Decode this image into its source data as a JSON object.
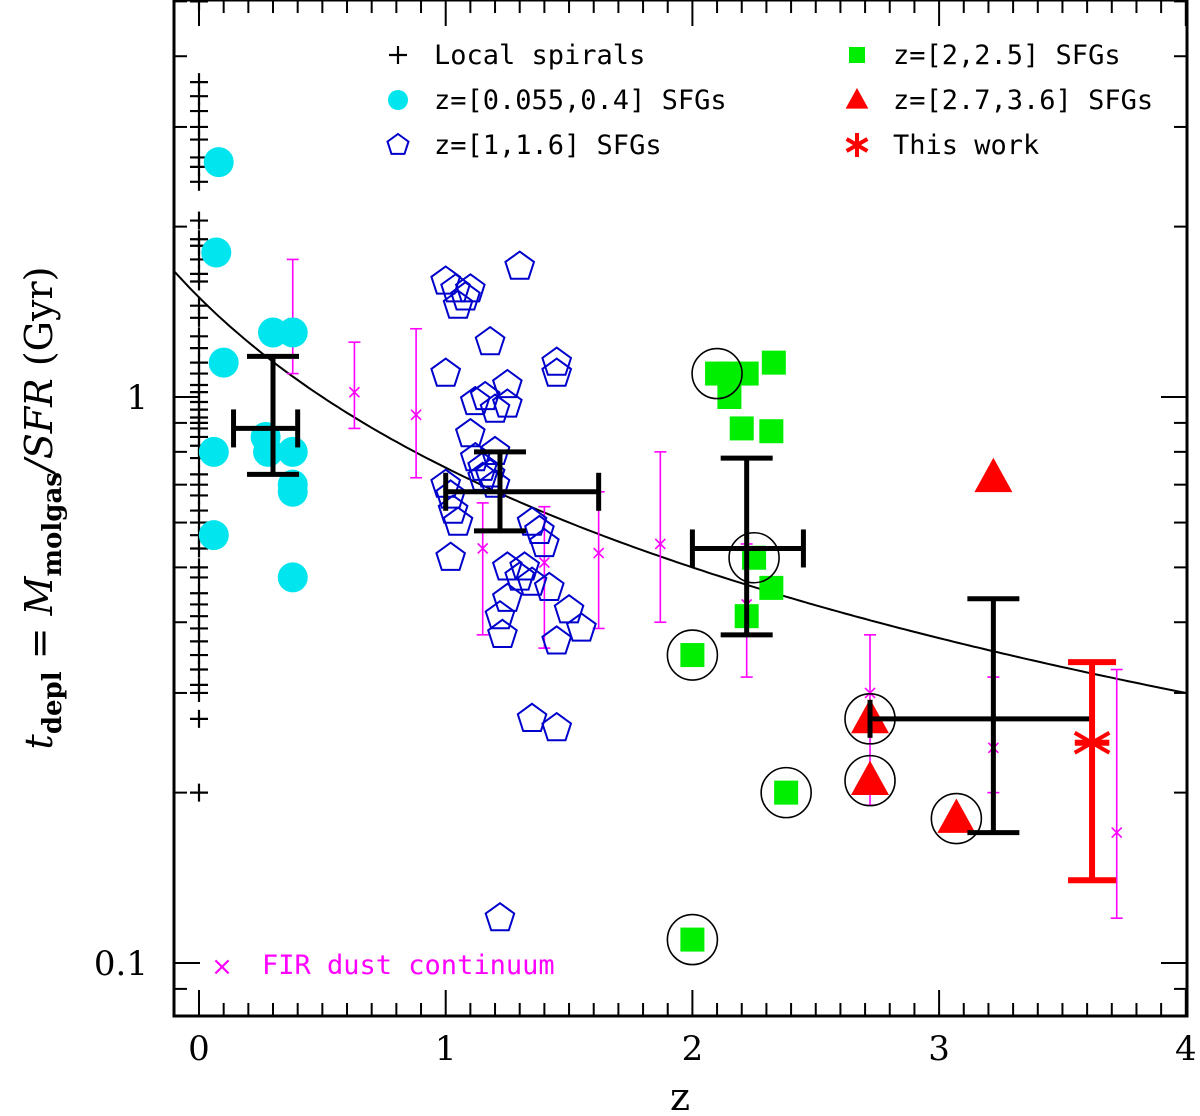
{
  "chart_data": {
    "type": "scatter",
    "xlabel": "z",
    "ylabel_parts": {
      "t": "t",
      "t_sub": "depl",
      "eq": " = ",
      "m": "M",
      "m_sub": "molgas",
      "rest": "/SFR",
      "unit": " (Gyr)"
    },
    "xlim": [
      -0.1,
      4.0
    ],
    "ylim": [
      0.08,
      7.0
    ],
    "y_scale": "log",
    "x_ticks": [
      0,
      1,
      2,
      3,
      4
    ],
    "x_tick_labels": [
      "0",
      "1",
      "2",
      "3",
      "4"
    ],
    "y_tick_labels": [
      {
        "v": 1,
        "label": "1"
      },
      {
        "v": 0.1,
        "label": "0.1"
      }
    ],
    "grid": false,
    "legend_position": "top",
    "colors": {
      "local": "#000000",
      "cyan": "#00e5ee",
      "blue": "#0000cc",
      "green": "#00ee00",
      "red": "#ff0000",
      "magenta": "#ff00ff",
      "black": "#000000"
    },
    "legend": [
      {
        "label": "Local spirals",
        "marker": "plus"
      },
      {
        "label": "z=[0.055,0.4] SFGs",
        "marker": "circle"
      },
      {
        "label": "z=[1,1.6] SFGs",
        "marker": "pentagon"
      },
      {
        "label": "z=[2,2.5] SFGs",
        "marker": "square"
      },
      {
        "label": "z=[2.7,3.6] SFGs",
        "marker": "triangle"
      },
      {
        "label": "This work",
        "marker": "asterisk"
      }
    ],
    "annotation": {
      "marker": "×",
      "label": "FIR dust continuum"
    },
    "trend_curve": {
      "formula": "t = 1.5 * (1+z)^-1.0",
      "note": ""
    },
    "series": [
      {
        "name": "Local spirals",
        "marker": "plus",
        "color": "black",
        "points": [
          [
            0,
            5.0
          ],
          [
            0,
            3.6
          ],
          [
            0,
            3.4
          ],
          [
            0,
            3.2
          ],
          [
            0,
            3.0
          ],
          [
            0,
            2.85
          ],
          [
            0,
            2.65
          ],
          [
            0,
            2.55
          ],
          [
            0,
            2.4
          ],
          [
            0,
            2.05
          ],
          [
            0,
            1.9
          ],
          [
            0,
            1.85
          ],
          [
            0,
            1.75
          ],
          [
            0,
            1.65
          ],
          [
            0,
            1.6
          ],
          [
            0,
            1.45
          ],
          [
            0,
            1.38
          ],
          [
            0,
            1.28
          ],
          [
            0,
            1.22
          ],
          [
            0,
            1.15
          ],
          [
            0,
            1.1
          ],
          [
            0,
            1.05
          ],
          [
            0,
            1.02
          ],
          [
            0,
            0.98
          ],
          [
            0,
            0.95
          ],
          [
            0,
            0.92
          ],
          [
            0,
            0.9
          ],
          [
            0,
            0.88
          ],
          [
            0,
            0.85
          ],
          [
            0,
            0.82
          ],
          [
            0,
            0.78
          ],
          [
            0,
            0.73
          ],
          [
            0,
            0.7
          ],
          [
            0,
            0.67
          ],
          [
            0,
            0.63
          ],
          [
            0,
            0.6
          ],
          [
            0,
            0.57
          ],
          [
            0,
            0.54
          ],
          [
            0,
            0.5
          ],
          [
            0,
            0.48
          ],
          [
            0,
            0.45
          ],
          [
            0,
            0.43
          ],
          [
            0,
            0.41
          ],
          [
            0,
            0.39
          ],
          [
            0,
            0.37
          ],
          [
            0,
            0.35
          ],
          [
            0,
            0.33
          ],
          [
            0,
            0.31
          ],
          [
            0,
            0.3
          ],
          [
            0,
            0.27
          ],
          [
            0,
            0.2
          ]
        ]
      },
      {
        "name": "z=[0.055,0.4] SFGs",
        "marker": "circle",
        "color": "cyan",
        "points": [
          [
            0.08,
            2.6
          ],
          [
            0.07,
            1.8
          ],
          [
            0.1,
            1.15
          ],
          [
            0.06,
            0.8
          ],
          [
            0.06,
            0.57
          ],
          [
            0.3,
            1.3
          ],
          [
            0.38,
            1.3
          ],
          [
            0.27,
            0.85
          ],
          [
            0.28,
            0.8
          ],
          [
            0.38,
            0.8
          ],
          [
            0.38,
            0.7
          ],
          [
            0.38,
            0.68
          ],
          [
            0.38,
            0.48
          ]
        ]
      },
      {
        "name": "z=[1,1.6] SFGs",
        "marker": "pentagon",
        "color": "blue",
        "points": [
          [
            1.0,
            1.6
          ],
          [
            1.04,
            1.55
          ],
          [
            1.08,
            1.5
          ],
          [
            1.05,
            1.45
          ],
          [
            1.1,
            1.55
          ],
          [
            1.3,
            1.7
          ],
          [
            1.0,
            1.1
          ],
          [
            1.12,
            0.98
          ],
          [
            1.16,
            1.0
          ],
          [
            1.2,
            0.95
          ],
          [
            1.25,
            1.05
          ],
          [
            1.18,
            1.25
          ],
          [
            1.25,
            0.97
          ],
          [
            1.45,
            1.15
          ],
          [
            1.45,
            1.1
          ],
          [
            1.1,
            0.86
          ],
          [
            1.2,
            0.8
          ],
          [
            1.12,
            0.78
          ],
          [
            1.15,
            0.75
          ],
          [
            1.18,
            0.73
          ],
          [
            1.0,
            0.7
          ],
          [
            1.02,
            0.67
          ],
          [
            1.03,
            0.63
          ],
          [
            1.05,
            0.6
          ],
          [
            1.15,
            0.72
          ],
          [
            1.2,
            0.7
          ],
          [
            1.35,
            0.6
          ],
          [
            1.38,
            0.58
          ],
          [
            1.4,
            0.55
          ],
          [
            1.02,
            0.52
          ],
          [
            1.25,
            0.5
          ],
          [
            1.3,
            0.48
          ],
          [
            1.32,
            0.5
          ],
          [
            1.35,
            0.47
          ],
          [
            1.25,
            0.44
          ],
          [
            1.22,
            0.41
          ],
          [
            1.42,
            0.46
          ],
          [
            1.5,
            0.42
          ],
          [
            1.55,
            0.39
          ],
          [
            1.45,
            0.37
          ],
          [
            1.23,
            0.38
          ],
          [
            1.35,
            0.27
          ],
          [
            1.45,
            0.26
          ],
          [
            1.22,
            0.12
          ]
        ]
      },
      {
        "name": "z=[2,2.5] SFGs",
        "marker": "square",
        "color": "green",
        "points": [
          [
            2.1,
            1.1
          ],
          [
            2.15,
            1.1
          ],
          [
            2.22,
            1.1
          ],
          [
            2.33,
            1.15
          ],
          [
            2.15,
            1.0
          ],
          [
            2.2,
            0.88
          ],
          [
            2.32,
            0.87
          ],
          [
            2.25,
            0.52
          ],
          [
            2.32,
            0.46
          ],
          [
            2.22,
            0.41
          ],
          [
            2.0,
            0.35
          ],
          [
            2.38,
            0.2
          ],
          [
            2.0,
            0.11
          ]
        ],
        "circled": [
          [
            2.1,
            1.1
          ],
          [
            2.25,
            0.52
          ],
          [
            2.0,
            0.35
          ],
          [
            2.38,
            0.2
          ],
          [
            2.0,
            0.11
          ]
        ]
      },
      {
        "name": "z=[2.7,3.6] SFGs",
        "marker": "triangle",
        "color": "red",
        "points": [
          [
            3.22,
            0.72
          ],
          [
            2.72,
            0.27
          ],
          [
            2.72,
            0.21
          ],
          [
            3.07,
            0.18
          ]
        ],
        "circled": [
          [
            2.72,
            0.27
          ],
          [
            2.72,
            0.21
          ],
          [
            3.07,
            0.18
          ]
        ]
      }
    ],
    "this_work": {
      "name": "This work",
      "x": 3.62,
      "y": 0.245,
      "yerr": [
        0.14,
        0.34
      ],
      "xerr": [
        3.55,
        3.69
      ]
    },
    "binned_means": [
      {
        "x": 0.3,
        "y": 0.88,
        "xlo": 0.14,
        "xhi": 0.4,
        "ylo": 0.73,
        "yhi": 1.18
      },
      {
        "x": 1.22,
        "y": 0.68,
        "xlo": 1.0,
        "xhi": 1.62,
        "ylo": 0.58,
        "yhi": 0.8
      },
      {
        "x": 2.22,
        "y": 0.54,
        "xlo": 2.0,
        "xhi": 2.45,
        "ylo": 0.38,
        "yhi": 0.78
      },
      {
        "x": 3.22,
        "y": 0.27,
        "xlo": 2.72,
        "xhi": 3.62,
        "ylo": 0.17,
        "yhi": 0.44
      }
    ],
    "fir_points": [
      {
        "x": 0.38,
        "y": 1.35,
        "lo": 1.1,
        "hi": 1.75
      },
      {
        "x": 0.63,
        "y": 1.02,
        "lo": 0.88,
        "hi": 1.25
      },
      {
        "x": 0.88,
        "y": 0.93,
        "lo": 0.72,
        "hi": 1.32
      },
      {
        "x": 1.15,
        "y": 0.54,
        "lo": 0.38,
        "hi": 0.65
      },
      {
        "x": 1.4,
        "y": 0.51,
        "lo": 0.36,
        "hi": 0.64
      },
      {
        "x": 1.62,
        "y": 0.53,
        "lo": 0.39,
        "hi": 0.68
      },
      {
        "x": 1.87,
        "y": 0.55,
        "lo": 0.4,
        "hi": 0.8
      },
      {
        "x": 2.22,
        "y": 0.43,
        "lo": 0.32,
        "hi": 0.55
      },
      {
        "x": 2.72,
        "y": 0.3,
        "lo": 0.19,
        "hi": 0.38
      },
      {
        "x": 3.22,
        "y": 0.24,
        "lo": 0.2,
        "hi": 0.32
      },
      {
        "x": 3.72,
        "y": 0.17,
        "lo": 0.12,
        "hi": 0.33
      }
    ]
  }
}
